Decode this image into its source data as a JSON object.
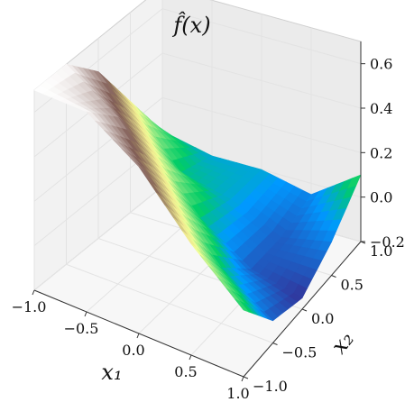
{
  "chart_data": {
    "type": "surface",
    "title": "f̂(x)",
    "xlabel": "x₁",
    "ylabel": "x₂",
    "zlabel": "",
    "xlim": [
      -1.0,
      1.0
    ],
    "ylim": [
      -1.0,
      1.0
    ],
    "zlim": [
      -0.2,
      0.7
    ],
    "x_ticks": [
      "−1.0",
      "−0.5",
      "0.0",
      "0.5",
      "1.0"
    ],
    "y_ticks": [
      "−1.0",
      "−0.5",
      "0.0",
      "0.5",
      "1.0"
    ],
    "z_ticks": [
      "−0.2",
      "0.0",
      "0.2",
      "0.4",
      "0.6"
    ],
    "x_tick_values": [
      -1.0,
      -0.5,
      0.0,
      0.5,
      1.0
    ],
    "y_tick_values": [
      -1.0,
      -0.5,
      0.0,
      0.5,
      1.0
    ],
    "z_tick_values": [
      -0.2,
      0.0,
      0.2,
      0.4,
      0.6
    ],
    "colormap": "terrain",
    "grid": true,
    "surface_description": "piecewise-linear ridge: value rises steeply toward x1=-1, x2=-1 corner, near zero plateau for x1+x2 > 0, steep drop near the diagonal",
    "surface_samples": {
      "x1": [
        -1.0,
        -0.5,
        0.0,
        0.5,
        1.0
      ],
      "x2": [
        -1.0,
        -0.5,
        0.0,
        0.5,
        1.0
      ],
      "z": [
        [
          0.7,
          0.7,
          0.55,
          0.3,
          0.05
        ],
        [
          0.7,
          0.55,
          0.3,
          0.05,
          0.0
        ],
        [
          0.55,
          0.3,
          0.05,
          0.0,
          0.0
        ],
        [
          0.3,
          0.05,
          -0.1,
          -0.1,
          -0.05
        ],
        [
          0.1,
          -0.1,
          -0.15,
          -0.05,
          0.1
        ]
      ]
    }
  }
}
